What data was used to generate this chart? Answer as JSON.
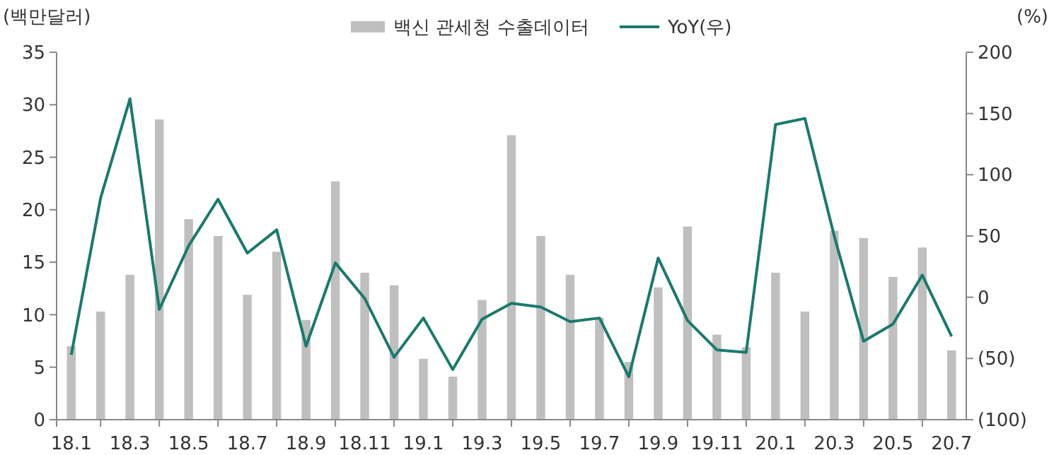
{
  "chart_data": {
    "type": "bar",
    "ylabel": "(백만달러)",
    "y2label": "(%)",
    "categories": [
      "18.1",
      null,
      "18.3",
      null,
      "18.5",
      null,
      "18.7",
      null,
      "18.9",
      null,
      "18.11",
      null,
      "19.1",
      null,
      "19.3",
      null,
      "19.5",
      null,
      "19.7",
      null,
      "19.9",
      null,
      "19.11",
      null,
      "20.1",
      null,
      "20.3",
      null,
      "20.5",
      null,
      "20.7"
    ],
    "series": [
      {
        "name": "백신 관세청 수출데이터",
        "color": "#bfbfbf",
        "values": [
          7.0,
          10.3,
          13.8,
          28.6,
          19.1,
          17.5,
          11.9,
          16.0,
          9.5,
          22.7,
          14.0,
          12.8,
          5.8,
          4.1,
          11.4,
          27.1,
          17.5,
          13.8,
          9.7,
          5.5,
          12.6,
          18.4,
          8.1,
          6.9,
          14.0,
          10.3,
          18.0,
          17.3,
          13.6,
          16.4,
          6.6
        ]
      },
      {
        "name": "YoY(우)",
        "type": "line",
        "axis": "y2",
        "color": "#1a7a6e",
        "values": [
          -47,
          81,
          162,
          -10,
          42,
          80,
          36,
          55,
          -40,
          28,
          -1,
          -49,
          -17,
          -59,
          -18,
          -5,
          -8,
          -20,
          -17,
          -65,
          32,
          -19,
          -43,
          -45,
          141,
          146,
          50,
          -36,
          -22,
          18,
          -32
        ]
      }
    ],
    "ylim": [
      0,
      35
    ],
    "yticks": [
      0,
      5,
      10,
      15,
      20,
      25,
      30,
      35
    ],
    "y2lim": [
      -100,
      200
    ],
    "y2ticks": [
      {
        "value": -100,
        "label": "(100)"
      },
      {
        "value": -50,
        "label": "(50)"
      },
      0,
      50,
      100,
      150,
      200
    ],
    "legend": "top",
    "grid": false,
    "line_style": "solid"
  }
}
